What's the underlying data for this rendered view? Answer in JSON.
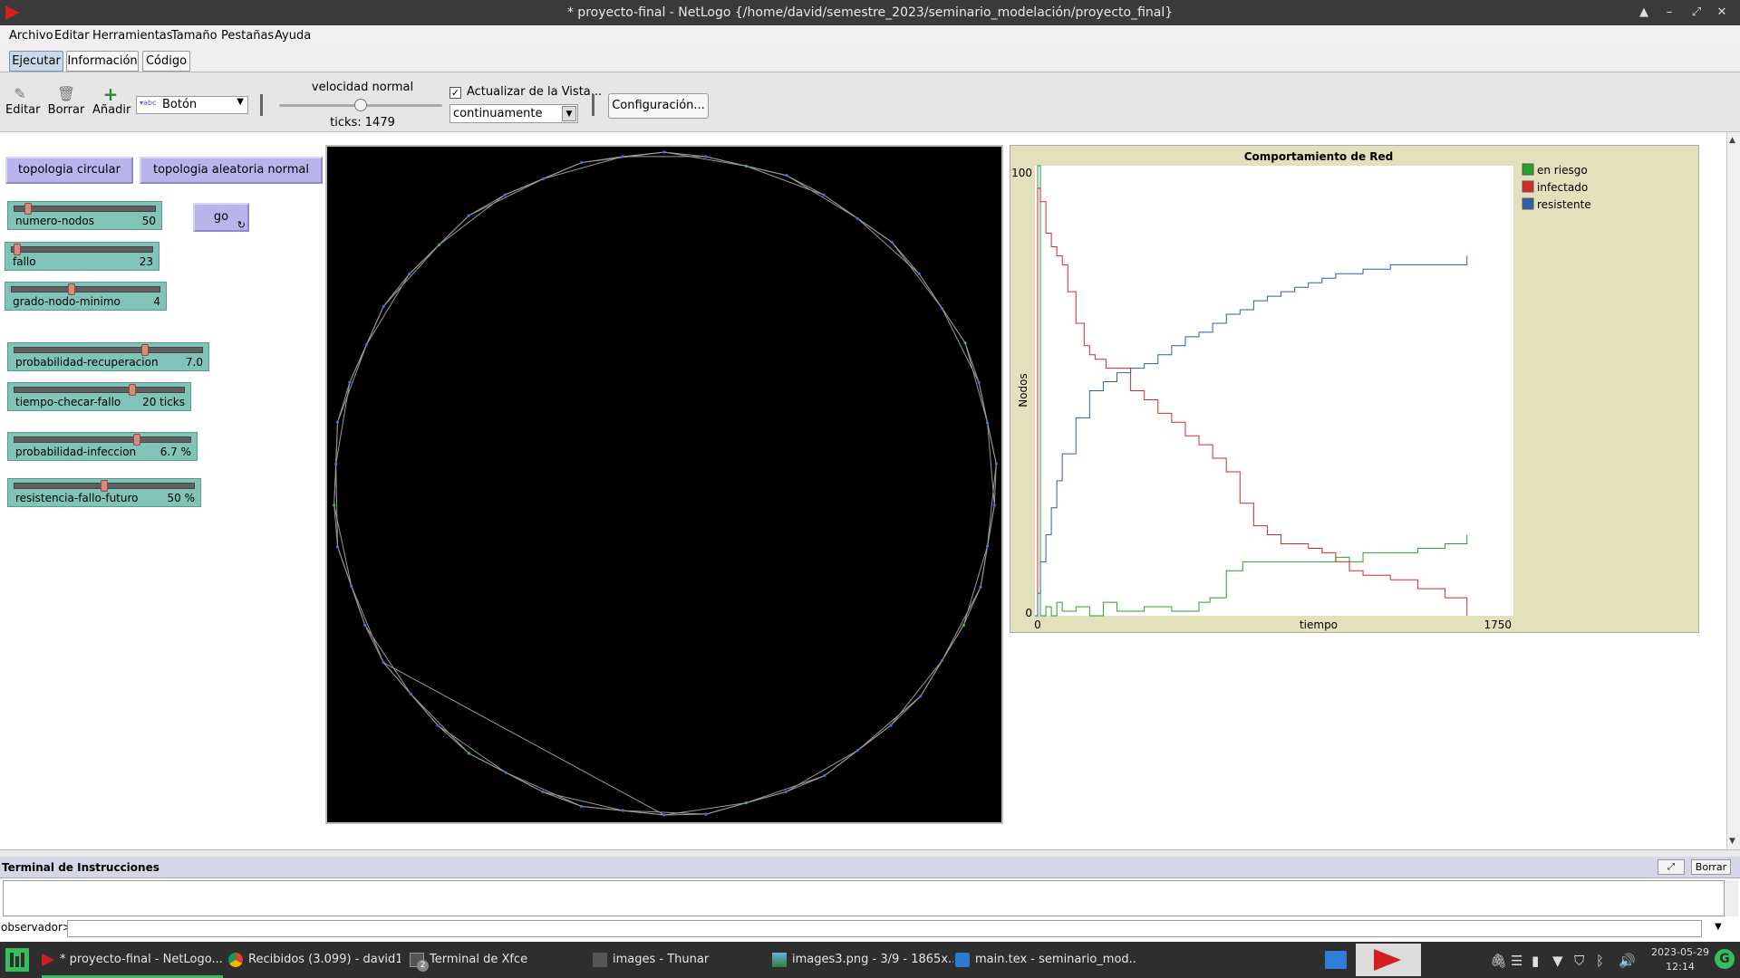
{
  "window": {
    "title": "* proyecto-final - NetLogo {/home/david/semestre_2023/seminario_modelación/proyecto_final}"
  },
  "menu": [
    "Archivo",
    "Editar",
    "Herramientas",
    "Tamaño",
    "Pestañas",
    "Ayuda"
  ],
  "tabs": [
    {
      "label": "Ejecutar",
      "active": true
    },
    {
      "label": "Información",
      "active": false
    },
    {
      "label": "Código",
      "active": false
    }
  ],
  "toolbar": {
    "edit_label": "Editar",
    "delete_label": "Borrar",
    "add_label": "Añadir",
    "widget_type": "Botón",
    "speed_label": "velocidad normal",
    "speed_fraction": 0.5,
    "ticks_label": "ticks: 1479",
    "update_view_label": "Actualizar de la Vista...",
    "update_view_checked": true,
    "update_mode": "continuamente",
    "settings_label": "Configuración..."
  },
  "buttons": {
    "circular": "topologia circular",
    "random": "topologia aleatoria normal",
    "go": "go"
  },
  "sliders": [
    {
      "name": "numero-nodos",
      "value": "50",
      "fraction": 0.08
    },
    {
      "name": "fallo",
      "value": "23",
      "fraction": 0.02
    },
    {
      "name": "grado-nodo-minimo",
      "value": "4",
      "fraction": 0.4
    },
    {
      "name": "probabilidad-recuperacion",
      "value": "7.0",
      "fraction": 0.7
    },
    {
      "name": "tiempo-checar-fallo",
      "value": "20 ticks",
      "fraction": 0.7
    },
    {
      "name": "probabilidad-infeccion",
      "value": "6.7 %",
      "fraction": 0.7
    },
    {
      "name": "resistencia-fallo-futuro",
      "value": "50 %",
      "fraction": 0.5
    }
  ],
  "plot": {
    "title": "Comportamiento de Red",
    "xlabel": "tiempo",
    "ylabel": "Nodos",
    "xmin_label": "0",
    "xmax_label": "1750",
    "ymin_label": "0",
    "ymax_label": "100",
    "legend": [
      {
        "name": "en riesgo",
        "color": "#2aa02a"
      },
      {
        "name": "infectado",
        "color": "#d42a2a"
      },
      {
        "name": "resistente",
        "color": "#2f5faa"
      }
    ]
  },
  "chart_data": {
    "type": "line",
    "xlim": [
      0,
      1750
    ],
    "ylim": [
      0,
      100
    ],
    "series": [
      {
        "name": "en riesgo",
        "color": "#2aa02a",
        "x": [
          0,
          10,
          20,
          40,
          60,
          80,
          100,
          150,
          200,
          250,
          300,
          400,
          500,
          600,
          640,
          700,
          760,
          780,
          900,
          1000,
          1050,
          1100,
          1150,
          1200,
          1300,
          1400,
          1500,
          1580
        ],
        "y": [
          0,
          100,
          0,
          2,
          0,
          3,
          1,
          2,
          0,
          3,
          1,
          2,
          1,
          3,
          4,
          10,
          12,
          12,
          12,
          12,
          12,
          13,
          12,
          14,
          14,
          15,
          16,
          18
        ]
      },
      {
        "name": "infectado",
        "color": "#d42a2a",
        "x": [
          0,
          10,
          20,
          40,
          60,
          80,
          100,
          120,
          150,
          180,
          200,
          220,
          260,
          300,
          350,
          400,
          450,
          500,
          550,
          600,
          650,
          700,
          750,
          800,
          850,
          900,
          950,
          1000,
          1050,
          1100,
          1150,
          1200,
          1300,
          1400,
          1500,
          1580
        ],
        "y": [
          0,
          95,
          92,
          85,
          82,
          80,
          78,
          72,
          65,
          60,
          58,
          57,
          55,
          55,
          50,
          48,
          45,
          43,
          40,
          38,
          35,
          32,
          25,
          20,
          18,
          16,
          16,
          15,
          14,
          12,
          10,
          9,
          8,
          6,
          4,
          0
        ]
      },
      {
        "name": "resistente",
        "color": "#2f5faa",
        "x": [
          0,
          10,
          20,
          40,
          60,
          80,
          100,
          150,
          200,
          250,
          300,
          350,
          400,
          450,
          500,
          550,
          600,
          650,
          700,
          750,
          800,
          850,
          900,
          950,
          1000,
          1050,
          1100,
          1150,
          1200,
          1300,
          1400,
          1500,
          1580
        ],
        "y": [
          0,
          5,
          12,
          18,
          24,
          30,
          36,
          44,
          50,
          52,
          54,
          55,
          56,
          58,
          60,
          62,
          63,
          65,
          67,
          68,
          70,
          71,
          72,
          73,
          74,
          75,
          76,
          76,
          77,
          78,
          78,
          78,
          80
        ]
      }
    ]
  },
  "command_center": {
    "title": "Terminal de Instrucciones",
    "clear_label": "Borrar",
    "prompt": "observador>"
  },
  "taskbar": {
    "items": [
      "* proyecto-final - NetLogo...",
      "Recibidos (3.099) - david1...",
      "Terminal de Xfce",
      "images - Thunar",
      "images3.png - 3/9 - 1865x...",
      "main.tex - seminario_mod..."
    ],
    "terminal_badge": "2",
    "date": "2023-05-29",
    "time": "12:14"
  }
}
